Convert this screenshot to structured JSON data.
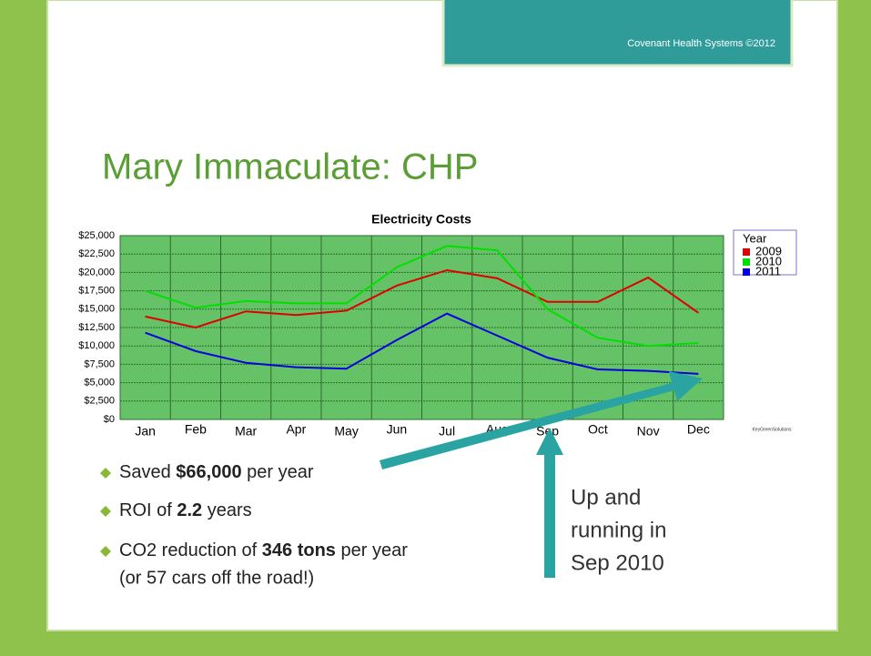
{
  "header": {
    "text": "Covenant Health Systems ©2012"
  },
  "slide_title": "Mary Immaculate: CHP",
  "chart_data": {
    "type": "line",
    "title": "Electricity Costs",
    "categories": [
      "Jan",
      "Feb",
      "Mar",
      "Apr",
      "May",
      "Jun",
      "Jul",
      "Aug",
      "Sep",
      "Oct",
      "Nov",
      "Dec"
    ],
    "series": [
      {
        "name": "2009",
        "color": "#e00000",
        "values": [
          14000,
          12500,
          14700,
          14200,
          14800,
          18200,
          20300,
          19200,
          16000,
          16000,
          19300,
          14500
        ]
      },
      {
        "name": "2010",
        "color": "#00e000",
        "values": [
          17500,
          15200,
          16100,
          15800,
          15800,
          20700,
          23600,
          23000,
          15000,
          11100,
          10000,
          10400
        ]
      },
      {
        "name": "2011",
        "color": "#0000e0",
        "values": [
          11800,
          9300,
          7700,
          7100,
          6900,
          10800,
          14400,
          11400,
          8400,
          6800,
          6600,
          6200
        ]
      }
    ],
    "legend_title": "Year",
    "legend": "right",
    "ylim": [
      0,
      25000
    ],
    "yticks": [
      {
        "value": 0,
        "label": "$0"
      },
      {
        "value": 2500,
        "label": "$2,500"
      },
      {
        "value": 5000,
        "label": "$5,000"
      },
      {
        "value": 7500,
        "label": "$7,500"
      },
      {
        "value": 10000,
        "label": "$10,000"
      },
      {
        "value": 12500,
        "label": "$12,500"
      },
      {
        "value": 15000,
        "label": "$15,000"
      },
      {
        "value": 17500,
        "label": "$17,500"
      },
      {
        "value": 20000,
        "label": "$20,000"
      },
      {
        "value": 22500,
        "label": "$22,500"
      },
      {
        "value": 25000,
        "label": "$25,000"
      }
    ],
    "grid": true,
    "plot_color": "#66c266",
    "logo_text": "KeyGreenSolutions"
  },
  "bullets": [
    {
      "pre": "Saved",
      "bold": "$66,000",
      "post": "per year"
    },
    {
      "pre": "ROI of",
      "bold": "2.2",
      "post": "years"
    },
    {
      "pre": "CO2 reduction of",
      "bold": "346 tons",
      "post": "per year",
      "line2": "(or 57 cars off the road!)"
    }
  ],
  "annotation": [
    "Up and",
    "running in",
    "Sep 2010"
  ]
}
